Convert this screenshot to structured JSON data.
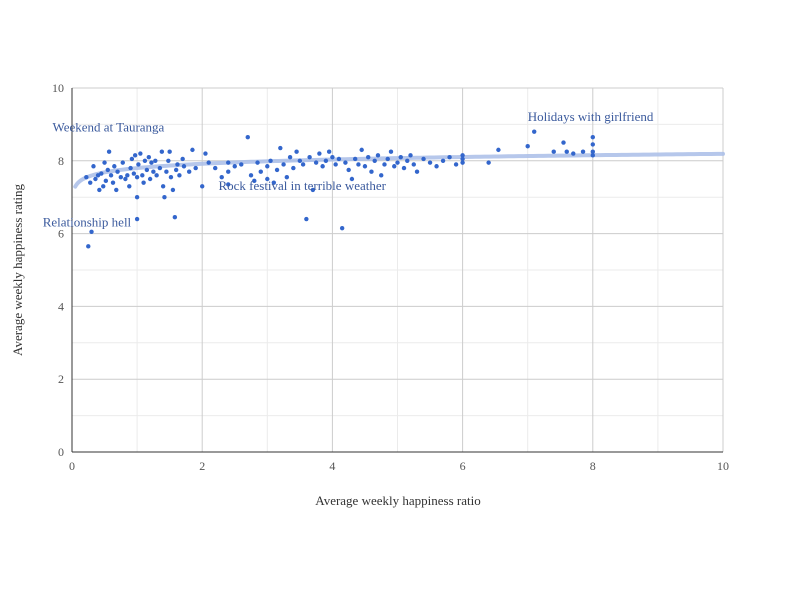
{
  "chart_data": {
    "type": "scatter",
    "xlabel": "Average weekly happiness ratio",
    "ylabel": "Average weekly happiness rating",
    "xlim": [
      0,
      10
    ],
    "ylim": [
      0,
      10
    ],
    "x_ticks": [
      "0",
      "2",
      "4",
      "6",
      "8",
      "10"
    ],
    "y_ticks": [
      "0",
      "2",
      "4",
      "6",
      "8",
      "10"
    ],
    "grid": true,
    "point_color": "#3366cc",
    "trendline_color": "#a9bde8",
    "trendline": {
      "type": "logarithmic",
      "a": 7.8,
      "b": 0.17
    },
    "points": [
      [
        0.25,
        5.65
      ],
      [
        0.3,
        6.05
      ],
      [
        0.22,
        7.55
      ],
      [
        0.28,
        7.4
      ],
      [
        0.33,
        7.85
      ],
      [
        0.36,
        7.5
      ],
      [
        0.4,
        7.6
      ],
      [
        0.42,
        7.2
      ],
      [
        0.45,
        7.65
      ],
      [
        0.48,
        7.3
      ],
      [
        0.5,
        7.95
      ],
      [
        0.52,
        7.45
      ],
      [
        0.55,
        7.75
      ],
      [
        0.57,
        8.25
      ],
      [
        0.6,
        7.6
      ],
      [
        0.63,
        7.4
      ],
      [
        0.65,
        7.85
      ],
      [
        0.68,
        7.2
      ],
      [
        0.7,
        7.7
      ],
      [
        0.75,
        7.55
      ],
      [
        0.78,
        7.95
      ],
      [
        0.82,
        7.5
      ],
      [
        0.85,
        7.6
      ],
      [
        0.88,
        7.3
      ],
      [
        0.9,
        7.8
      ],
      [
        0.92,
        8.05
      ],
      [
        0.95,
        7.65
      ],
      [
        0.97,
        8.15
      ],
      [
        1.0,
        6.4
      ],
      [
        1.0,
        7.0
      ],
      [
        1.0,
        7.55
      ],
      [
        1.02,
        7.9
      ],
      [
        1.05,
        8.2
      ],
      [
        1.08,
        7.6
      ],
      [
        1.1,
        7.4
      ],
      [
        1.12,
        8.0
      ],
      [
        1.15,
        7.75
      ],
      [
        1.18,
        8.1
      ],
      [
        1.2,
        7.5
      ],
      [
        1.22,
        7.95
      ],
      [
        1.25,
        7.7
      ],
      [
        1.28,
        8.0
      ],
      [
        1.3,
        7.6
      ],
      [
        1.35,
        7.8
      ],
      [
        1.38,
        8.25
      ],
      [
        1.4,
        7.3
      ],
      [
        1.42,
        7.0
      ],
      [
        1.45,
        7.7
      ],
      [
        1.48,
        8.0
      ],
      [
        1.5,
        8.25
      ],
      [
        1.52,
        7.55
      ],
      [
        1.55,
        7.2
      ],
      [
        1.58,
        6.45
      ],
      [
        1.6,
        7.75
      ],
      [
        1.62,
        7.9
      ],
      [
        1.65,
        7.6
      ],
      [
        1.7,
        8.05
      ],
      [
        1.72,
        7.85
      ],
      [
        1.8,
        7.7
      ],
      [
        1.85,
        8.3
      ],
      [
        1.9,
        7.8
      ],
      [
        2.0,
        7.3
      ],
      [
        2.05,
        8.2
      ],
      [
        2.1,
        7.95
      ],
      [
        2.2,
        7.8
      ],
      [
        2.3,
        7.55
      ],
      [
        2.4,
        7.35
      ],
      [
        2.4,
        7.7
      ],
      [
        2.4,
        7.95
      ],
      [
        2.5,
        7.85
      ],
      [
        2.6,
        7.9
      ],
      [
        2.7,
        8.65
      ],
      [
        2.75,
        7.6
      ],
      [
        2.8,
        7.45
      ],
      [
        2.85,
        7.95
      ],
      [
        2.9,
        7.7
      ],
      [
        3.0,
        7.85
      ],
      [
        3.0,
        7.5
      ],
      [
        3.05,
        8.0
      ],
      [
        3.1,
        7.4
      ],
      [
        3.15,
        7.75
      ],
      [
        3.2,
        8.35
      ],
      [
        3.25,
        7.9
      ],
      [
        3.3,
        7.55
      ],
      [
        3.35,
        8.1
      ],
      [
        3.4,
        7.8
      ],
      [
        3.45,
        8.25
      ],
      [
        3.5,
        8.0
      ],
      [
        3.55,
        7.9
      ],
      [
        3.6,
        6.4
      ],
      [
        3.65,
        8.1
      ],
      [
        3.7,
        7.2
      ],
      [
        3.75,
        7.95
      ],
      [
        3.8,
        8.2
      ],
      [
        3.85,
        7.85
      ],
      [
        3.9,
        8.0
      ],
      [
        3.95,
        8.25
      ],
      [
        4.0,
        8.1
      ],
      [
        4.05,
        7.9
      ],
      [
        4.1,
        8.05
      ],
      [
        4.15,
        6.15
      ],
      [
        4.2,
        7.95
      ],
      [
        4.25,
        7.75
      ],
      [
        4.3,
        7.5
      ],
      [
        4.35,
        8.05
      ],
      [
        4.4,
        7.9
      ],
      [
        4.45,
        8.3
      ],
      [
        4.5,
        7.85
      ],
      [
        4.55,
        8.1
      ],
      [
        4.6,
        7.7
      ],
      [
        4.65,
        8.0
      ],
      [
        4.7,
        8.15
      ],
      [
        4.75,
        7.6
      ],
      [
        4.8,
        7.9
      ],
      [
        4.85,
        8.05
      ],
      [
        4.9,
        8.25
      ],
      [
        4.95,
        7.85
      ],
      [
        5.0,
        7.95
      ],
      [
        5.05,
        8.1
      ],
      [
        5.1,
        7.8
      ],
      [
        5.15,
        8.0
      ],
      [
        5.2,
        8.15
      ],
      [
        5.25,
        7.9
      ],
      [
        5.3,
        7.7
      ],
      [
        5.4,
        8.05
      ],
      [
        5.5,
        7.95
      ],
      [
        5.6,
        7.85
      ],
      [
        5.7,
        8.0
      ],
      [
        5.8,
        8.1
      ],
      [
        5.9,
        7.9
      ],
      [
        6.0,
        8.05
      ],
      [
        6.0,
        7.95
      ],
      [
        6.0,
        8.15
      ],
      [
        6.4,
        7.95
      ],
      [
        6.55,
        8.3
      ],
      [
        7.0,
        8.4
      ],
      [
        7.1,
        8.8
      ],
      [
        7.4,
        8.25
      ],
      [
        7.55,
        8.5
      ],
      [
        7.6,
        8.25
      ],
      [
        7.7,
        8.2
      ],
      [
        7.85,
        8.25
      ],
      [
        8.0,
        8.65
      ],
      [
        8.0,
        8.45
      ],
      [
        8.0,
        8.25
      ],
      [
        8.0,
        8.15
      ]
    ],
    "annotations": [
      {
        "text": "Weekend at Tauranga",
        "x": -0.3,
        "y": 8.8
      },
      {
        "text": "Relationship hell",
        "x": -0.45,
        "y": 6.2
      },
      {
        "text": "Rock festival in terrible weather",
        "x": 2.25,
        "y": 7.2
      },
      {
        "text": "Holidays with girlfriend",
        "x": 7.0,
        "y": 9.1
      }
    ]
  }
}
